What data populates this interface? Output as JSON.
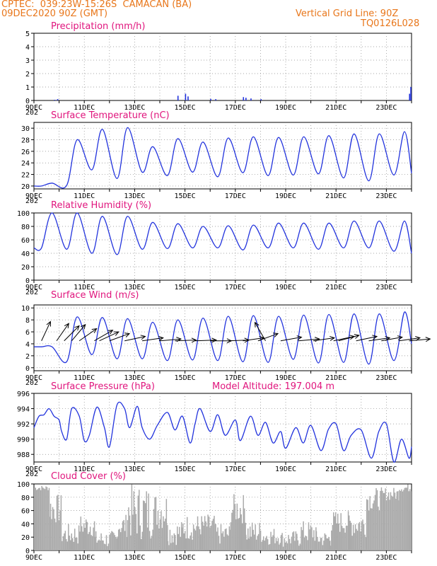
{
  "header": {
    "line1": "CPTEC:  039:23W-15:26S  CAMACAN (BA)",
    "line2": "09DEC2020 90Z (GMT)",
    "grid_note": "Vertical Grid Line: 90Z",
    "run_id": "TQ0126L028"
  },
  "x_labels": [
    "9DEC",
    "11DEC",
    "13DEC",
    "15DEC",
    "17DEC",
    "19DEC",
    "21DEC",
    "23DEC"
  ],
  "x_label_overflow": "202",
  "colors": {
    "line": "#2233dd",
    "arrow": "#000000",
    "cloud": "#aaaaaa",
    "title": "#e0157d",
    "header": "#e8761a"
  },
  "chart_data": [
    {
      "id": "precipitation",
      "type": "bar",
      "title": "Precipitation (mm/h)",
      "ylim": [
        0,
        5
      ],
      "yticks": [
        0,
        1,
        2,
        3,
        4,
        5
      ],
      "days": 15,
      "bars": [
        [
          0.8,
          0.05
        ],
        [
          0.92,
          0.1
        ],
        [
          5.7,
          0.35
        ],
        [
          6.0,
          0.5
        ],
        [
          6.1,
          0.3
        ],
        [
          7.0,
          0.12
        ],
        [
          7.2,
          0.1
        ],
        [
          8.3,
          0.25
        ],
        [
          8.4,
          0.2
        ],
        [
          8.6,
          0.15
        ],
        [
          9.0,
          0.1
        ],
        [
          14.9,
          0.5
        ],
        [
          14.95,
          1.0
        ]
      ]
    },
    {
      "id": "temperature",
      "type": "line",
      "title": "Surface Temperature (nC)",
      "ylim": [
        19.5,
        31
      ],
      "yticks": [
        20,
        22,
        24,
        26,
        28,
        30
      ],
      "days": 15,
      "maxima": [
        20.5,
        28,
        29.8,
        30.1,
        26.8,
        28.2,
        27.6,
        28.3,
        28.5,
        28.4,
        28.5,
        28.7,
        29,
        29,
        29.4,
        29.2,
        29.3
      ],
      "minima": [
        20,
        20.1,
        22.8,
        21.3,
        22.4,
        21.8,
        22.4,
        21.6,
        22.3,
        21.8,
        21.9,
        22.1,
        21.4,
        20.9,
        21.9,
        22,
        22.2,
        23
      ]
    },
    {
      "id": "humidity",
      "type": "line",
      "title": "Relative Humidity (%)",
      "ylim": [
        0,
        100
      ],
      "yticks": [
        0,
        20,
        40,
        60,
        80,
        100
      ],
      "days": 15,
      "maxima": [
        100,
        100,
        95,
        95,
        86,
        84,
        80,
        81,
        82,
        85,
        85,
        85,
        88,
        88,
        88,
        89,
        90,
        80
      ],
      "minima": [
        48,
        46,
        40,
        38,
        46,
        47,
        48,
        48,
        45,
        48,
        48,
        46,
        48,
        48,
        43,
        44,
        42,
        40
      ]
    },
    {
      "id": "wind",
      "type": "line",
      "title": "Surface Wind (m/s)",
      "ylim": [
        -0.5,
        10.5
      ],
      "yticks": [
        0,
        2,
        4,
        6,
        8,
        10
      ],
      "days": 15,
      "maxima": [
        3.5,
        8.5,
        8.4,
        8.2,
        7.6,
        8,
        8.3,
        8.6,
        8.7,
        8.6,
        8.8,
        8.9,
        9,
        9,
        9.3,
        9.4,
        9.5,
        9.5
      ],
      "minima": [
        3.5,
        1,
        2.2,
        1.5,
        1.5,
        1.2,
        1.3,
        1.2,
        1.0,
        0.9,
        1.4,
        0.8,
        0.9,
        0.6,
        1.2,
        2.2,
        2.0,
        4
      ],
      "arrows": [
        [
          0.3,
          205
        ],
        [
          0.9,
          215
        ],
        [
          1.2,
          225
        ],
        [
          1.5,
          220
        ],
        [
          1.8,
          235
        ],
        [
          2.4,
          240
        ],
        [
          2.6,
          245
        ],
        [
          3.0,
          250
        ],
        [
          3.6,
          258
        ],
        [
          4.3,
          262
        ],
        [
          5.0,
          265
        ],
        [
          5.6,
          268
        ],
        [
          6.4,
          268
        ],
        [
          7.0,
          270
        ],
        [
          7.7,
          268
        ],
        [
          8.3,
          262
        ],
        [
          8.9,
          250
        ],
        [
          9.2,
          150
        ],
        [
          9.8,
          260
        ],
        [
          10.5,
          265
        ],
        [
          11.1,
          262
        ],
        [
          11.9,
          258
        ],
        [
          12.1,
          255
        ],
        [
          12.8,
          258
        ],
        [
          13.3,
          262
        ],
        [
          13.8,
          260
        ],
        [
          14.5,
          262
        ],
        [
          14.9,
          265
        ]
      ]
    },
    {
      "id": "pressure",
      "type": "line",
      "title": "Surface Pressure (hPa)",
      "subtitle": "Model Altitude: 197.004 m",
      "ylim": [
        987,
        996
      ],
      "yticks": [
        988,
        990,
        992,
        994,
        996
      ],
      "days": 15,
      "points": [
        [
          0,
          991.5
        ],
        [
          0.2,
          993
        ],
        [
          0.4,
          993.2
        ],
        [
          0.6,
          994
        ],
        [
          0.8,
          993
        ],
        [
          1.0,
          992.5
        ],
        [
          1.1,
          991
        ],
        [
          1.3,
          990
        ],
        [
          1.5,
          994
        ],
        [
          1.8,
          993
        ],
        [
          2.0,
          989.8
        ],
        [
          2.2,
          990.5
        ],
        [
          2.5,
          994.2
        ],
        [
          2.8,
          991.5
        ],
        [
          3.0,
          989
        ],
        [
          3.3,
          994.5
        ],
        [
          3.6,
          994
        ],
        [
          3.8,
          991.5
        ],
        [
          4.1,
          994.3
        ],
        [
          4.3,
          991.5
        ],
        [
          4.6,
          990
        ],
        [
          4.9,
          991.8
        ],
        [
          5.3,
          993.5
        ],
        [
          5.6,
          991.2
        ],
        [
          5.9,
          993
        ],
        [
          6.2,
          989.5
        ],
        [
          6.4,
          992
        ],
        [
          6.6,
          994
        ],
        [
          7.0,
          991
        ],
        [
          7.3,
          993.2
        ],
        [
          7.6,
          990.5
        ],
        [
          8.0,
          992.5
        ],
        [
          8.2,
          989.8
        ],
        [
          8.6,
          993
        ],
        [
          8.9,
          990.5
        ],
        [
          9.2,
          992.2
        ],
        [
          9.5,
          989.5
        ],
        [
          9.8,
          991
        ],
        [
          10.0,
          988.8
        ],
        [
          10.4,
          991.5
        ],
        [
          10.7,
          989.5
        ],
        [
          11.0,
          991.8
        ],
        [
          11.4,
          988.5
        ],
        [
          11.7,
          991.3
        ],
        [
          12.0,
          992
        ],
        [
          12.3,
          988.5
        ],
        [
          12.6,
          990.5
        ],
        [
          13.0,
          991.2
        ],
        [
          13.4,
          987.5
        ],
        [
          13.7,
          991
        ],
        [
          14.0,
          992
        ],
        [
          14.3,
          987
        ],
        [
          14.6,
          990
        ],
        [
          14.9,
          987.5
        ],
        [
          15.0,
          989
        ]
      ]
    },
    {
      "id": "cloud",
      "type": "bar",
      "title": "Cloud Cover (%)",
      "ylim": [
        0,
        100
      ],
      "yticks": [
        0,
        20,
        40,
        60,
        80,
        100
      ],
      "days": 15,
      "segments": [
        [
          0.0,
          0.6,
          90,
          98
        ],
        [
          0.6,
          1.1,
          40,
          85
        ],
        [
          1.1,
          1.8,
          8,
          40
        ],
        [
          1.8,
          2.4,
          20,
          55
        ],
        [
          2.4,
          3.3,
          3,
          30
        ],
        [
          3.3,
          3.7,
          20,
          55
        ],
        [
          3.7,
          4.7,
          15,
          100
        ],
        [
          4.7,
          5.3,
          30,
          90
        ],
        [
          5.3,
          5.9,
          8,
          45
        ],
        [
          5.9,
          6.6,
          15,
          55
        ],
        [
          6.6,
          7.2,
          20,
          55
        ],
        [
          7.2,
          7.8,
          8,
          40
        ],
        [
          7.8,
          8.4,
          40,
          85
        ],
        [
          8.4,
          9.1,
          10,
          45
        ],
        [
          9.1,
          9.8,
          8,
          35
        ],
        [
          9.8,
          10.6,
          5,
          30
        ],
        [
          10.6,
          11.2,
          10,
          45
        ],
        [
          11.2,
          11.8,
          5,
          30
        ],
        [
          11.8,
          12.5,
          25,
          60
        ],
        [
          12.5,
          13.2,
          20,
          60
        ],
        [
          13.2,
          13.9,
          60,
          95
        ],
        [
          13.9,
          14.5,
          75,
          95
        ],
        [
          14.5,
          15.0,
          88,
          100
        ]
      ]
    }
  ]
}
